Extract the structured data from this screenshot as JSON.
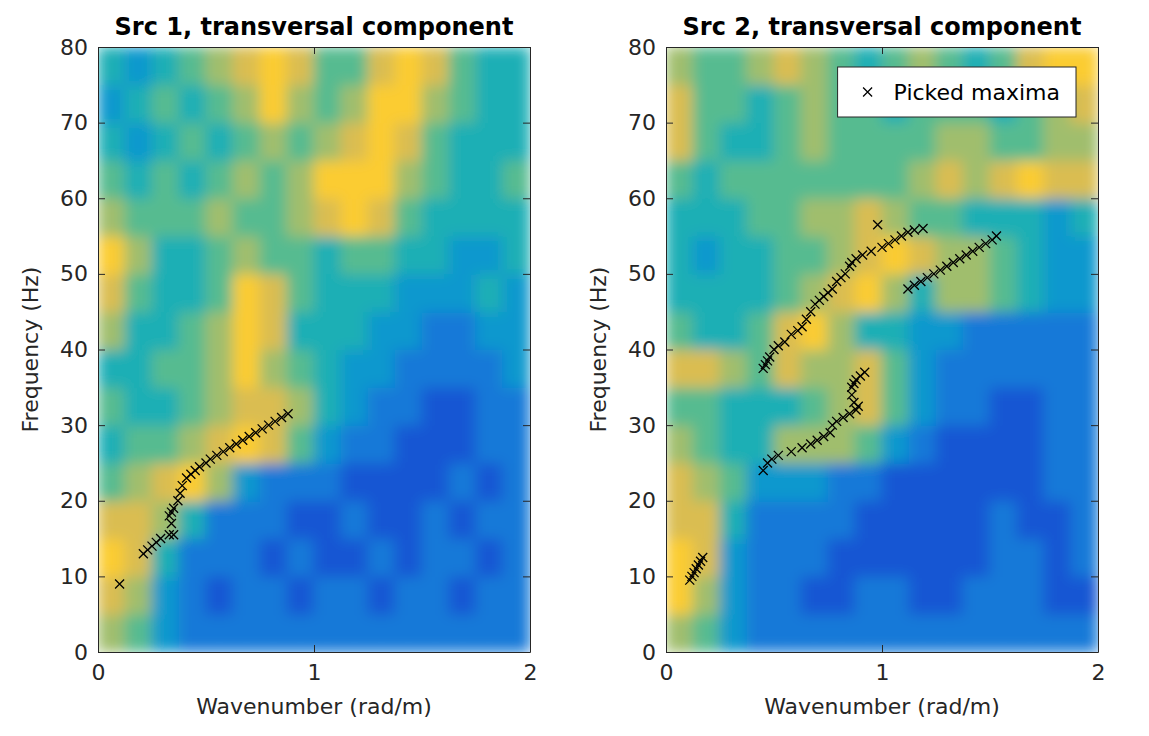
{
  "chart_data": [
    {
      "type": "heatmap",
      "title": "Src 1, transversal component",
      "x_label": "Wavenumber (rad/m)",
      "y_label": "Frequency (Hz)",
      "xlim": [
        0,
        2
      ],
      "ylim": [
        0,
        80
      ],
      "xticks": [
        0,
        1,
        2
      ],
      "yticks": [
        0,
        10,
        20,
        30,
        40,
        50,
        60,
        70,
        80
      ],
      "grid": false,
      "zlim": [
        0,
        9
      ],
      "x": [
        0.0625,
        0.1875,
        0.3125,
        0.4375,
        0.5625,
        0.6875,
        0.8125,
        0.9375,
        1.0625,
        1.1875,
        1.3125,
        1.4375,
        1.5625,
        1.6875,
        1.8125,
        1.9375
      ],
      "y": [
        2.5,
        7.5,
        12.5,
        17.5,
        22.5,
        27.5,
        32.5,
        37.5,
        42.5,
        47.5,
        52.5,
        57.5,
        62.5,
        67.5,
        72.5,
        77.5
      ],
      "z": [
        [
          6,
          5,
          3,
          2,
          2,
          2,
          2,
          2,
          2,
          2,
          2,
          2,
          2,
          2,
          2,
          2
        ],
        [
          7,
          6,
          3,
          2,
          1,
          2,
          2,
          1,
          2,
          2,
          1,
          2,
          2,
          1,
          2,
          2
        ],
        [
          8,
          7,
          4,
          2,
          2,
          2,
          1,
          2,
          1,
          1,
          2,
          1,
          2,
          2,
          1,
          2
        ],
        [
          7,
          7,
          6,
          4,
          2,
          2,
          2,
          1,
          1,
          2,
          1,
          1,
          2,
          1,
          2,
          2
        ],
        [
          5,
          6,
          7,
          8,
          6,
          3,
          2,
          2,
          2,
          1,
          1,
          1,
          1,
          2,
          1,
          2
        ],
        [
          4,
          5,
          5,
          6,
          7,
          8,
          7,
          5,
          3,
          2,
          2,
          1,
          1,
          1,
          2,
          2
        ],
        [
          5,
          4,
          4,
          5,
          6,
          7,
          7,
          6,
          4,
          3,
          2,
          2,
          1,
          1,
          2,
          2
        ],
        [
          4,
          4,
          5,
          5,
          6,
          8,
          6,
          5,
          4,
          3,
          3,
          2,
          2,
          2,
          2,
          3
        ],
        [
          6,
          4,
          4,
          5,
          6,
          8,
          7,
          4,
          4,
          4,
          3,
          3,
          2,
          2,
          3,
          3
        ],
        [
          7,
          5,
          4,
          4,
          5,
          8,
          7,
          5,
          4,
          4,
          4,
          3,
          3,
          3,
          4,
          3
        ],
        [
          8,
          6,
          4,
          4,
          5,
          6,
          5,
          5,
          4,
          5,
          5,
          4,
          4,
          3,
          3,
          4
        ],
        [
          6,
          5,
          5,
          5,
          6,
          5,
          5,
          6,
          7,
          8,
          7,
          5,
          4,
          4,
          4,
          4
        ],
        [
          5,
          4,
          5,
          4,
          5,
          6,
          5,
          6,
          8,
          8,
          8,
          6,
          5,
          4,
          4,
          5
        ],
        [
          4,
          3,
          4,
          5,
          4,
          5,
          6,
          5,
          6,
          7,
          8,
          7,
          5,
          4,
          4,
          4
        ],
        [
          3,
          4,
          5,
          4,
          5,
          6,
          8,
          6,
          5,
          6,
          8,
          8,
          6,
          5,
          4,
          4
        ],
        [
          4,
          3,
          4,
          5,
          6,
          7,
          8,
          7,
          5,
          5,
          7,
          8,
          7,
          5,
          4,
          4
        ]
      ],
      "series": [
        {
          "type": "scatter",
          "marker": "x",
          "color": "#000000",
          "x": [
            0.1,
            0.21,
            0.23,
            0.25,
            0.27,
            0.29,
            0.33,
            0.35,
            0.34,
            0.33,
            0.34,
            0.35,
            0.37,
            0.38,
            0.39,
            0.41,
            0.43,
            0.45,
            0.47,
            0.5,
            0.52,
            0.55,
            0.58,
            0.61,
            0.64,
            0.67,
            0.7,
            0.73,
            0.76,
            0.79,
            0.82,
            0.85,
            0.88
          ],
          "values": [
            9,
            13,
            13.5,
            14,
            14.5,
            15,
            15.5,
            15.5,
            17,
            18,
            18.5,
            19,
            20,
            21,
            22,
            23,
            23.5,
            24,
            24.5,
            25,
            25.5,
            26,
            26.5,
            27,
            27.5,
            28,
            28.5,
            29,
            29.5,
            30,
            30.5,
            31,
            31.5
          ]
        }
      ]
    },
    {
      "type": "heatmap",
      "title": "Src 2, transversal component",
      "x_label": "Wavenumber (rad/m)",
      "y_label": "Frequency (Hz)",
      "xlim": [
        0,
        2
      ],
      "ylim": [
        0,
        80
      ],
      "xticks": [
        0,
        1,
        2
      ],
      "yticks": [
        0,
        10,
        20,
        30,
        40,
        50,
        60,
        70,
        80
      ],
      "grid": false,
      "legend": "upper right",
      "zlim": [
        0,
        9
      ],
      "x": [
        0.0625,
        0.1875,
        0.3125,
        0.4375,
        0.5625,
        0.6875,
        0.8125,
        0.9375,
        1.0625,
        1.1875,
        1.3125,
        1.4375,
        1.5625,
        1.6875,
        1.8125,
        1.9375
      ],
      "y": [
        2.5,
        7.5,
        12.5,
        17.5,
        22.5,
        27.5,
        32.5,
        37.5,
        42.5,
        47.5,
        52.5,
        57.5,
        62.5,
        67.5,
        72.5,
        77.5
      ],
      "z": [
        [
          6,
          5,
          3,
          2,
          2,
          2,
          2,
          2,
          2,
          2,
          2,
          2,
          2,
          2,
          2,
          2
        ],
        [
          8,
          6,
          3,
          2,
          2,
          1,
          1,
          2,
          2,
          1,
          1,
          2,
          2,
          2,
          1,
          1
        ],
        [
          8,
          7,
          3,
          2,
          2,
          2,
          1,
          1,
          1,
          1,
          1,
          1,
          2,
          2,
          1,
          2
        ],
        [
          7,
          7,
          4,
          2,
          2,
          2,
          2,
          1,
          1,
          1,
          1,
          1,
          2,
          1,
          1,
          2
        ],
        [
          7,
          6,
          5,
          3,
          3,
          3,
          2,
          2,
          1,
          1,
          1,
          1,
          1,
          1,
          2,
          2
        ],
        [
          6,
          5,
          4,
          4,
          6,
          6,
          6,
          5,
          3,
          2,
          1,
          1,
          1,
          1,
          2,
          2
        ],
        [
          5,
          5,
          4,
          4,
          4,
          5,
          6,
          7,
          5,
          3,
          2,
          2,
          1,
          1,
          2,
          2
        ],
        [
          7,
          7,
          6,
          5,
          7,
          6,
          6,
          7,
          5,
          3,
          2,
          2,
          2,
          2,
          2,
          2
        ],
        [
          5,
          4,
          4,
          5,
          7,
          8,
          6,
          4,
          4,
          3,
          3,
          2,
          2,
          2,
          2,
          2
        ],
        [
          4,
          4,
          4,
          4,
          5,
          6,
          7,
          8,
          6,
          4,
          6,
          6,
          5,
          4,
          3,
          3
        ],
        [
          4,
          3,
          4,
          4,
          5,
          5,
          6,
          7,
          8,
          7,
          6,
          6,
          5,
          4,
          3,
          3
        ],
        [
          4,
          4,
          4,
          5,
          5,
          6,
          6,
          7,
          6,
          5,
          5,
          4,
          4,
          4,
          3,
          4
        ],
        [
          5,
          4,
          5,
          5,
          5,
          5,
          5,
          5,
          5,
          6,
          7,
          6,
          7,
          8,
          7,
          7
        ],
        [
          7,
          5,
          4,
          4,
          5,
          6,
          5,
          5,
          5,
          5,
          6,
          6,
          5,
          5,
          6,
          6
        ],
        [
          7,
          5,
          5,
          4,
          5,
          6,
          5,
          5,
          4,
          5,
          5,
          5,
          4,
          5,
          6,
          7
        ],
        [
          6,
          5,
          5,
          6,
          7,
          6,
          5,
          4,
          5,
          6,
          5,
          4,
          5,
          7,
          8,
          8
        ]
      ],
      "series": [
        {
          "name": "Picked maxima",
          "type": "scatter",
          "marker": "x",
          "color": "#000000",
          "x": [
            0.11,
            0.12,
            0.13,
            0.14,
            0.15,
            0.16,
            0.17,
            0.45,
            0.47,
            0.49,
            0.52,
            0.58,
            0.63,
            0.67,
            0.7,
            0.73,
            0.76,
            0.77,
            0.79,
            0.82,
            0.85,
            0.88,
            0.89,
            0.87,
            0.86,
            0.86,
            0.87,
            0.88,
            0.9,
            0.92,
            0.45,
            0.46,
            0.47,
            0.48,
            0.5,
            0.52,
            0.55,
            0.58,
            0.61,
            0.63,
            0.65,
            0.67,
            0.69,
            0.71,
            0.73,
            0.75,
            0.77,
            0.79,
            0.81,
            0.83,
            0.85,
            0.86,
            0.88,
            0.91,
            0.95,
            1.0,
            1.03,
            1.06,
            1.09,
            1.12,
            1.15,
            1.19,
            0.98,
            1.12,
            1.15,
            1.18,
            1.21,
            1.24,
            1.27,
            1.3,
            1.33,
            1.36,
            1.39,
            1.42,
            1.45,
            1.48,
            1.51,
            1.53
          ],
          "values": [
            9.5,
            10,
            10.5,
            11,
            11.5,
            12,
            12.5,
            24,
            25,
            25.5,
            26,
            26.5,
            27,
            27.5,
            28,
            28.5,
            29,
            30,
            30.5,
            31,
            31.5,
            32,
            32.5,
            33,
            34,
            35,
            35.5,
            36,
            36.5,
            37,
            37.5,
            38,
            38.5,
            39,
            40,
            40.5,
            41,
            42,
            42.5,
            43,
            44,
            45,
            46,
            46.5,
            47,
            47.5,
            48,
            49,
            49.5,
            50,
            51,
            51.5,
            52,
            52.5,
            53,
            53.5,
            54,
            54.5,
            55,
            55.5,
            55.8,
            56,
            56.5,
            48,
            48.5,
            49,
            49.5,
            50,
            50.5,
            51,
            51.5,
            52,
            52.5,
            53,
            53.5,
            54,
            54.5,
            55
          ]
        }
      ]
    }
  ]
}
